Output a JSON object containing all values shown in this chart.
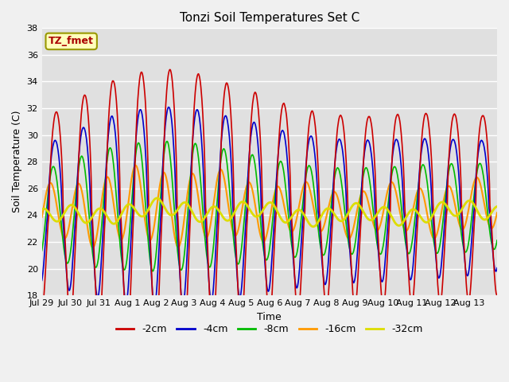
{
  "title": "Tonzi Soil Temperatures Set C",
  "xlabel": "Time",
  "ylabel": "Soil Temperature (C)",
  "ylim": [
    18,
    38
  ],
  "yticks": [
    18,
    20,
    22,
    24,
    26,
    28,
    30,
    32,
    34,
    36,
    38
  ],
  "series_labels": [
    "-2cm",
    "-4cm",
    "-8cm",
    "-16cm",
    "-32cm"
  ],
  "series_colors": [
    "#cc0000",
    "#0000cc",
    "#00bb00",
    "#ff9900",
    "#dddd00"
  ],
  "series_linewidths": [
    1.2,
    1.2,
    1.2,
    1.5,
    2.0
  ],
  "annotation_text": "TZ_fmet",
  "annotation_color": "#aa0000",
  "annotation_bg": "#ffffbb",
  "annotation_border": "#999900",
  "fig_bg_color": "#f0f0f0",
  "plot_bg_color": "#e0e0e0",
  "n_points": 960,
  "base_temp": 24.5,
  "tick_labels": [
    "Jul 29",
    "Jul 30",
    "Jul 31",
    "Aug 1",
    "Aug 2",
    "Aug 3",
    "Aug 4",
    "Aug 5",
    "Aug 6",
    "Aug 7",
    "Aug 8",
    "Aug 9",
    "Aug 10",
    "Aug 11",
    "Aug 12",
    "Aug 13"
  ]
}
